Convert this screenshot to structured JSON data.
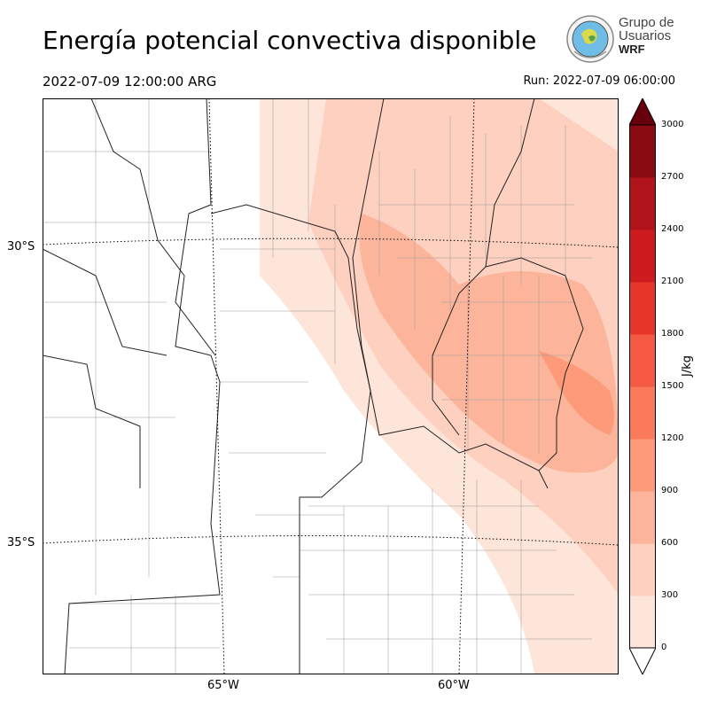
{
  "title": "Energía potencial convectiva disponible",
  "valid_time": "2022-07-09 12:00:00 ARG",
  "run_time": "Run: 2022-07-09 06:00:00",
  "logo": {
    "line1": "Grupo de",
    "line2": "Usuarios",
    "line3": "WRF"
  },
  "map": {
    "lat_labels": [
      "30°S",
      "35°S"
    ],
    "lon_labels": [
      "65°W",
      "60°W"
    ]
  },
  "colorbar": {
    "unit": "J/kg",
    "ticks": [
      "0",
      "300",
      "600",
      "900",
      "1200",
      "1500",
      "1800",
      "2100",
      "2400",
      "2700",
      "3000"
    ],
    "colors": [
      "#fee5d9",
      "#fdd0bf",
      "#fcb59b",
      "#fc9a7a",
      "#fb7a5a",
      "#f45a41",
      "#e83529",
      "#cd1a1e",
      "#b1131a",
      "#8a0b12"
    ],
    "extend_color": "#67000d"
  }
}
